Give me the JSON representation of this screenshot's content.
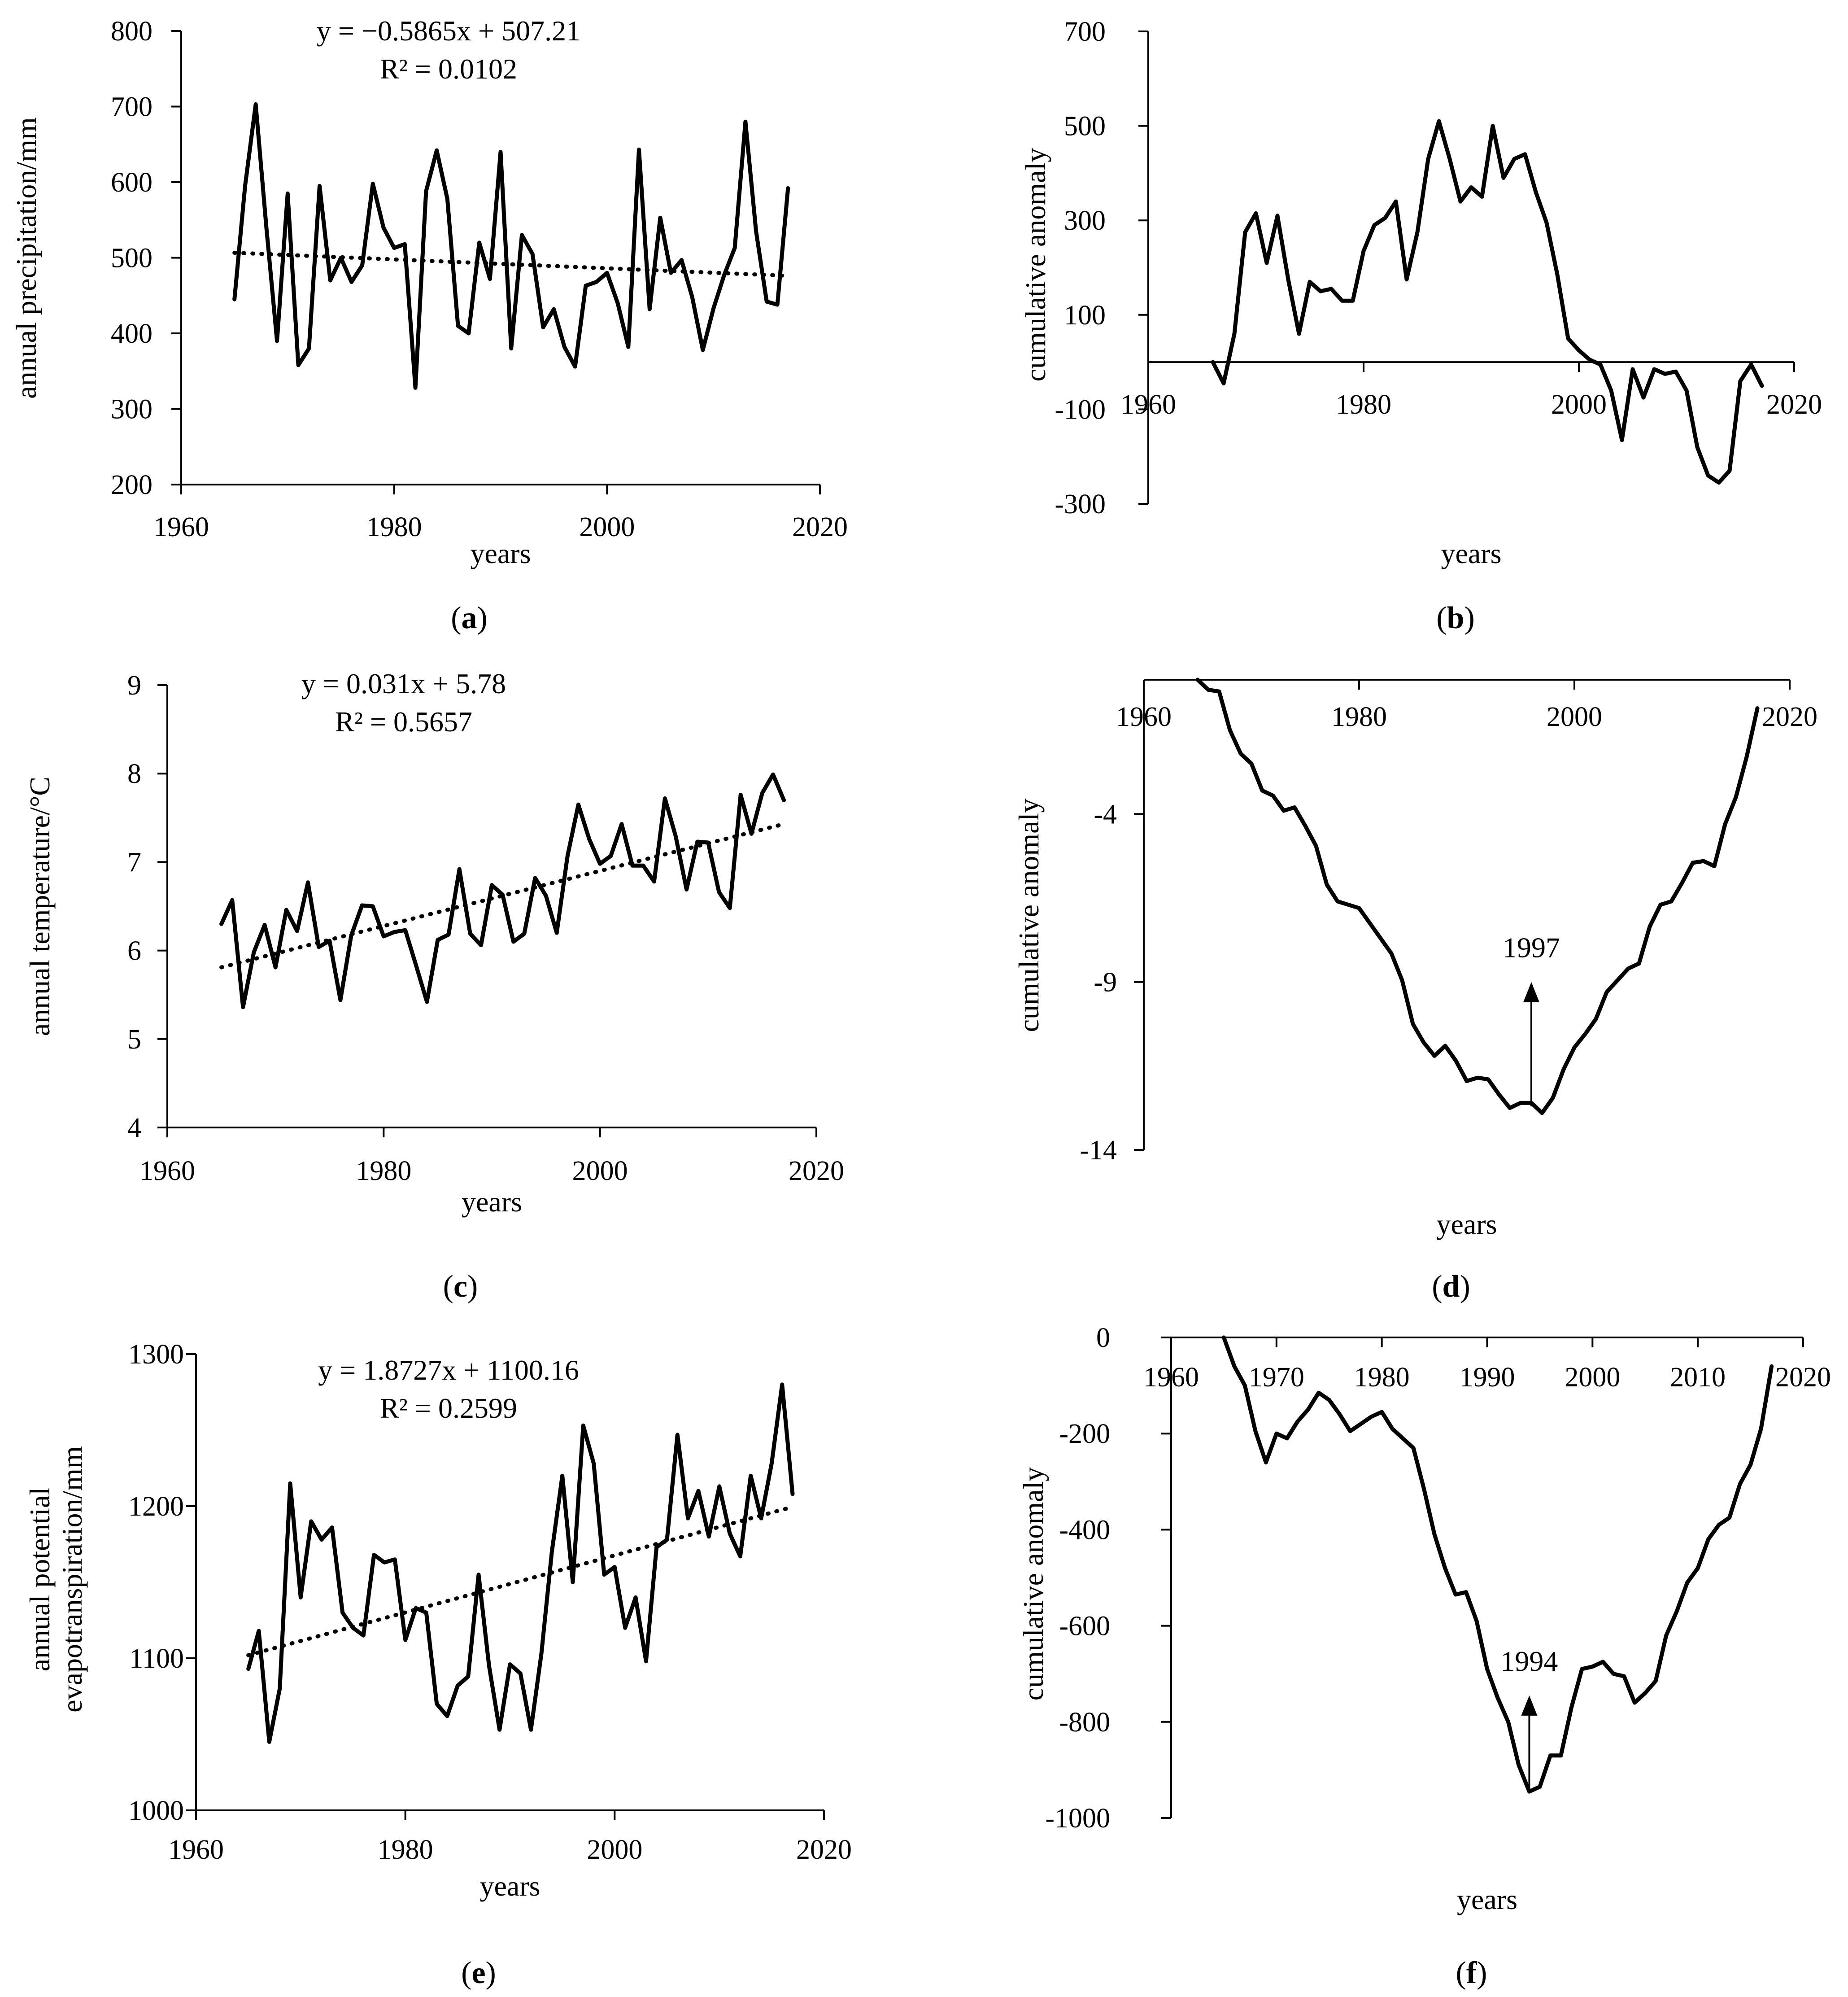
{
  "chart_data": [
    {
      "id": "a",
      "type": "line",
      "panel_label": "a",
      "xlabel": "years",
      "ylabel": "annual precipitation/mm",
      "xlim": [
        1960,
        2020
      ],
      "ylim": [
        200,
        800
      ],
      "xticks": [
        1960,
        1980,
        2000,
        2020
      ],
      "yticks": [
        200,
        300,
        400,
        500,
        600,
        700,
        800
      ],
      "equation": "y = −0.5865x + 507.21",
      "r2_label": "R² = 0.0102",
      "trend": [
        [
          1965,
          506.6
        ],
        [
          2017,
          476.1
        ]
      ],
      "x": [
        1965,
        1966,
        1967,
        1968,
        1969,
        1970,
        1971,
        1972,
        1973,
        1974,
        1975,
        1976,
        1977,
        1978,
        1979,
        1980,
        1981,
        1982,
        1983,
        1984,
        1985,
        1986,
        1987,
        1988,
        1989,
        1990,
        1991,
        1992,
        1993,
        1994,
        1995,
        1996,
        1997,
        1998,
        1999,
        2000,
        2001,
        2002,
        2003,
        2004,
        2005,
        2006,
        2007,
        2008,
        2009,
        2010,
        2011,
        2012,
        2013,
        2014,
        2015,
        2016,
        2017
      ],
      "values": [
        445,
        595,
        703,
        540,
        390,
        585,
        358,
        380,
        595,
        470,
        500,
        468,
        490,
        598,
        540,
        513,
        518,
        328,
        588,
        642,
        578,
        410,
        400,
        520,
        472,
        640,
        380,
        530,
        505,
        408,
        432,
        382,
        356,
        463,
        468,
        480,
        440,
        382,
        643,
        432,
        553,
        480,
        497,
        448,
        378,
        433,
        477,
        513,
        680,
        535,
        442,
        438,
        592
      ]
    },
    {
      "id": "b",
      "type": "line",
      "panel_label": "b",
      "xlabel": "years",
      "ylabel": "cumulative anomaly",
      "xlim": [
        1960,
        2020
      ],
      "ylim": [
        -300,
        700
      ],
      "xticks": [
        1960,
        1980,
        2000,
        2020
      ],
      "yticks": [
        -300,
        -100,
        100,
        300,
        500,
        700
      ],
      "x": [
        1966,
        1967,
        1968,
        1969,
        1970,
        1971,
        1972,
        1973,
        1974,
        1975,
        1976,
        1977,
        1978,
        1979,
        1980,
        1981,
        1982,
        1983,
        1984,
        1985,
        1986,
        1987,
        1988,
        1989,
        1990,
        1991,
        1992,
        1993,
        1994,
        1995,
        1996,
        1997,
        1998,
        1999,
        2000,
        2001,
        2002,
        2003,
        2004,
        2005,
        2006,
        2007,
        2008,
        2009,
        2010,
        2011,
        2012,
        2013,
        2014,
        2015,
        2016,
        2017
      ],
      "values": [
        0,
        -45,
        60,
        275,
        315,
        210,
        310,
        175,
        60,
        170,
        150,
        155,
        130,
        130,
        235,
        290,
        305,
        340,
        175,
        275,
        430,
        510,
        430,
        340,
        370,
        350,
        500,
        390,
        430,
        440,
        360,
        295,
        185,
        50,
        25,
        5,
        -5,
        -60,
        -165,
        -15,
        -75,
        -15,
        -25,
        -20,
        -60,
        -180,
        -240,
        -255,
        -230,
        -40,
        -5,
        -50
      ]
    },
    {
      "id": "c",
      "type": "line",
      "panel_label": "c",
      "xlabel": "years",
      "ylabel": "annual temperature/°C",
      "xlim": [
        1960,
        2020
      ],
      "ylim": [
        4,
        9
      ],
      "xticks": [
        1960,
        1980,
        2000,
        2020
      ],
      "yticks": [
        4,
        5,
        6,
        7,
        8,
        9
      ],
      "equation": "y = 0.031x + 5.78",
      "r2_label": "R² = 0.5657",
      "trend": [
        [
          1965,
          5.81
        ],
        [
          2017,
          7.43
        ]
      ],
      "x": [
        1965,
        1966,
        1967,
        1968,
        1969,
        1970,
        1971,
        1972,
        1973,
        1974,
        1975,
        1976,
        1977,
        1978,
        1979,
        1980,
        1981,
        1982,
        1983,
        1984,
        1985,
        1986,
        1987,
        1988,
        1989,
        1990,
        1991,
        1992,
        1993,
        1994,
        1995,
        1996,
        1997,
        1998,
        1999,
        2000,
        2001,
        2002,
        2003,
        2004,
        2005,
        2006,
        2007,
        2008,
        2009,
        2010,
        2011,
        2012,
        2013,
        2014,
        2015,
        2016,
        2017
      ],
      "values": [
        6.3,
        6.57,
        5.36,
        5.98,
        6.29,
        5.81,
        6.46,
        6.22,
        6.77,
        6.04,
        6.11,
        5.44,
        6.17,
        6.51,
        6.5,
        6.16,
        6.21,
        6.23,
        5.83,
        5.42,
        6.12,
        6.18,
        6.92,
        6.19,
        6.06,
        6.74,
        6.63,
        6.1,
        6.19,
        6.82,
        6.62,
        6.2,
        7.07,
        7.65,
        7.26,
        6.98,
        7.07,
        7.43,
        6.96,
        6.96,
        6.78,
        7.72,
        7.29,
        6.69,
        7.23,
        7.22,
        6.66,
        6.48,
        7.76,
        7.32,
        7.78,
        7.99,
        7.7
      ]
    },
    {
      "id": "d",
      "type": "line",
      "panel_label": "d",
      "xlabel": "years",
      "ylabel": "cumulative anomaly",
      "xlim": [
        1960,
        2020
      ],
      "ylim": [
        -14,
        0
      ],
      "xticks": [
        1960,
        1980,
        2000,
        2020
      ],
      "yticks": [
        -14,
        -9,
        -4
      ],
      "annotation": "1997",
      "arrow_x": 1996,
      "arrow_from_y": -12.7,
      "arrow_to_y": -9.0,
      "x": [
        1965,
        1966,
        1967,
        1968,
        1969,
        1970,
        1971,
        1972,
        1973,
        1974,
        1975,
        1976,
        1977,
        1978,
        1979,
        1980,
        1981,
        1982,
        1983,
        1984,
        1985,
        1986,
        1987,
        1988,
        1989,
        1990,
        1991,
        1992,
        1993,
        1994,
        1995,
        1996,
        1997,
        1998,
        1999,
        2000,
        2001,
        2002,
        2003,
        2004,
        2005,
        2006,
        2007,
        2008,
        2009,
        2010,
        2011,
        2012,
        2013,
        2014,
        2015,
        2016,
        2017
      ],
      "values": [
        0,
        -0.3,
        -0.35,
        -1.5,
        -2.2,
        -2.5,
        -3.3,
        -3.45,
        -3.9,
        -3.8,
        -4.35,
        -4.95,
        -6.1,
        -6.6,
        -6.7,
        -6.8,
        -7.25,
        -7.7,
        -8.15,
        -8.95,
        -10.25,
        -10.8,
        -11.2,
        -10.9,
        -11.35,
        -11.95,
        -11.85,
        -11.9,
        -12.35,
        -12.75,
        -12.6,
        -12.6,
        -12.9,
        -12.45,
        -11.6,
        -10.95,
        -10.55,
        -10.1,
        -9.3,
        -8.95,
        -8.6,
        -8.45,
        -7.35,
        -6.7,
        -6.6,
        -6.05,
        -5.45,
        -5.4,
        -5.55,
        -4.3,
        -3.5,
        -2.3,
        -0.85
      ]
    },
    {
      "id": "e",
      "type": "line",
      "panel_label": "e",
      "xlabel": "years",
      "ylabel": "annual potential evapotranspiration/mm",
      "ylabel_lines": [
        "annual potential",
        "evapotranspiration/mm"
      ],
      "xlim": [
        1960,
        2020
      ],
      "ylim": [
        1000,
        1300
      ],
      "xticks": [
        1960,
        1980,
        2000,
        2020
      ],
      "yticks": [
        1000,
        1100,
        1200,
        1300
      ],
      "equation": "y = 1.8727x + 1100.16",
      "r2_label": "R² = 0.2599",
      "trend": [
        [
          1965,
          1102
        ],
        [
          2017,
          1199.5
        ]
      ],
      "x": [
        1965,
        1966,
        1967,
        1968,
        1969,
        1970,
        1971,
        1972,
        1973,
        1974,
        1975,
        1976,
        1977,
        1978,
        1979,
        1980,
        1981,
        1982,
        1983,
        1984,
        1985,
        1986,
        1987,
        1988,
        1989,
        1990,
        1991,
        1992,
        1993,
        1994,
        1995,
        1996,
        1997,
        1998,
        1999,
        2000,
        2001,
        2002,
        2003,
        2004,
        2005,
        2006,
        2007,
        2008,
        2009,
        2010,
        2011,
        2012,
        2013,
        2014,
        2015,
        2016,
        2017
      ],
      "values": [
        1093,
        1118,
        1045,
        1080,
        1215,
        1140,
        1190,
        1178,
        1186,
        1130,
        1120,
        1115,
        1168,
        1163,
        1165,
        1112,
        1133,
        1130,
        1070,
        1062,
        1082,
        1088,
        1155,
        1095,
        1053,
        1096,
        1090,
        1053,
        1103,
        1170,
        1220,
        1150,
        1253,
        1228,
        1155,
        1160,
        1120,
        1140,
        1098,
        1173,
        1178,
        1247,
        1192,
        1210,
        1180,
        1213,
        1182,
        1167,
        1220,
        1192,
        1228,
        1280,
        1208
      ]
    },
    {
      "id": "f",
      "type": "line",
      "panel_label": "f",
      "xlabel": "years",
      "ylabel": "cumulative anomaly",
      "xlim": [
        1960,
        2020
      ],
      "ylim": [
        -1000,
        0
      ],
      "xticks": [
        1960,
        1970,
        1980,
        1990,
        2000,
        2010,
        2020
      ],
      "yticks": [
        -1000,
        -800,
        -600,
        -400,
        -200,
        0
      ],
      "annotation": "1994",
      "arrow_x": 1994,
      "arrow_from_y": -940,
      "arrow_to_y": -745,
      "x": [
        1965,
        1966,
        1967,
        1968,
        1969,
        1970,
        1971,
        1972,
        1973,
        1974,
        1975,
        1976,
        1977,
        1978,
        1979,
        1980,
        1981,
        1982,
        1983,
        1984,
        1985,
        1986,
        1987,
        1988,
        1989,
        1990,
        1991,
        1992,
        1993,
        1994,
        1995,
        1996,
        1997,
        1998,
        1999,
        2000,
        2001,
        2002,
        2003,
        2004,
        2005,
        2006,
        2007,
        2008,
        2009,
        2010,
        2011,
        2012,
        2013,
        2014,
        2015,
        2016,
        2017
      ],
      "values": [
        0,
        -60,
        -100,
        -195,
        -260,
        -200,
        -210,
        -175,
        -150,
        -115,
        -130,
        -160,
        -195,
        -180,
        -165,
        -155,
        -190,
        -210,
        -230,
        -315,
        -410,
        -480,
        -535,
        -530,
        -590,
        -690,
        -750,
        -800,
        -890,
        -945,
        -935,
        -870,
        -870,
        -770,
        -690,
        -685,
        -675,
        -700,
        -705,
        -760,
        -740,
        -715,
        -620,
        -570,
        -510,
        -480,
        -420,
        -390,
        -375,
        -305,
        -265,
        -190,
        -60
      ]
    }
  ]
}
